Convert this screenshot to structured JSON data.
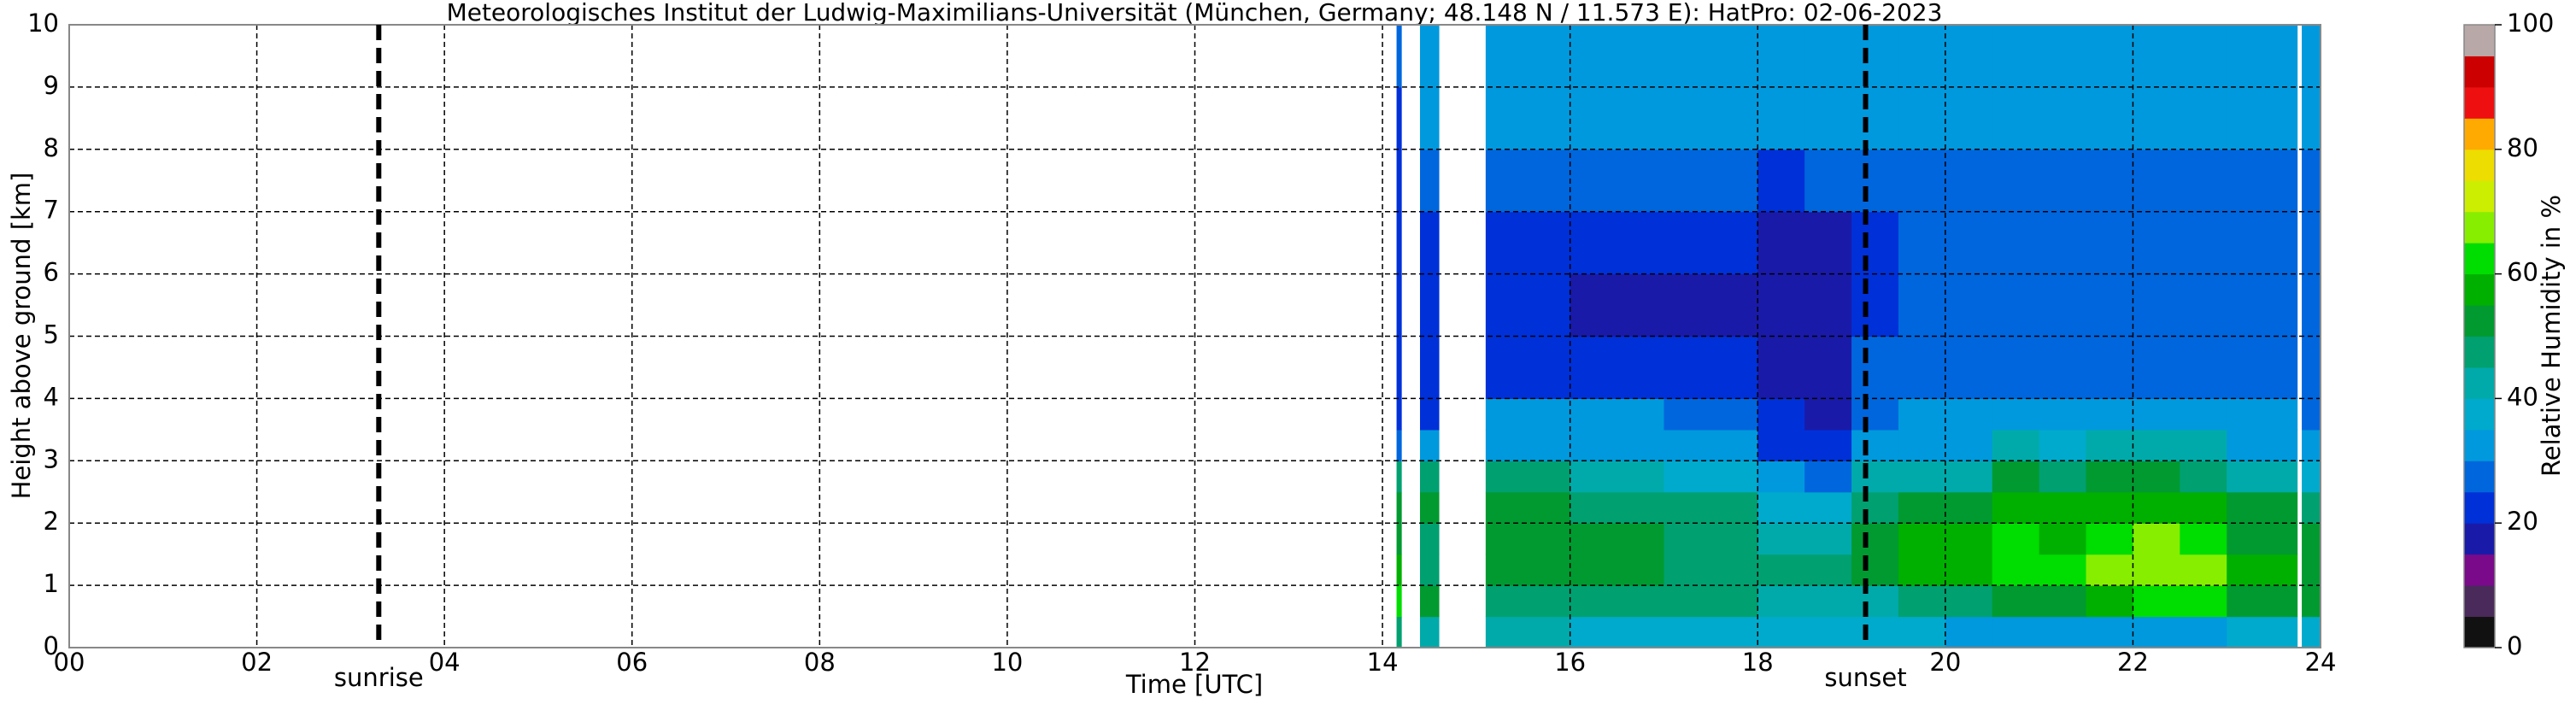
{
  "chart_data": {
    "type": "heatmap",
    "title": "Meteorologisches Institut der Ludwig-Maximilians-Universität (München, Germany; 48.148 N / 11.573 E):    HatPro: 02-06-2023",
    "x_label": "Time [UTC]",
    "y_label": "Height above ground [km]",
    "xlim": [
      0,
      24
    ],
    "ylim": [
      0,
      10
    ],
    "xticks": [
      {
        "value": 0,
        "label": "00"
      },
      {
        "value": 2,
        "label": "02"
      },
      {
        "value": 4,
        "label": "04"
      },
      {
        "value": 6,
        "label": "06"
      },
      {
        "value": 8,
        "label": "08"
      },
      10,
      12,
      14,
      16,
      18,
      20,
      22,
      24
    ],
    "yticks": [
      0,
      1,
      2,
      3,
      4,
      5,
      6,
      7,
      8,
      9,
      10
    ],
    "grid": true,
    "x_edges": [
      14.15,
      14.2,
      14.4,
      14.6,
      15.1,
      16,
      17,
      18,
      18.5,
      19,
      19.5,
      20,
      20.5,
      21,
      21.5,
      22,
      22.5,
      23,
      23.75,
      23.8,
      24
    ],
    "y_edges": [
      0,
      0.5,
      1,
      1.5,
      2,
      2.5,
      3,
      3.5,
      4,
      5,
      6,
      7,
      8,
      9,
      10
    ],
    "values": [
      [
        45,
        null,
        42,
        null,
        40,
        38,
        38,
        38,
        36,
        36,
        35,
        34,
        32,
        30,
        30,
        32,
        34,
        38,
        null,
        36
      ],
      [
        62,
        null,
        50,
        null,
        45,
        45,
        45,
        42,
        40,
        42,
        45,
        48,
        52,
        52,
        58,
        60,
        62,
        52,
        null,
        50
      ],
      [
        55,
        null,
        45,
        null,
        50,
        50,
        48,
        46,
        46,
        50,
        55,
        58,
        62,
        60,
        65,
        66,
        66,
        56,
        null,
        54
      ],
      [
        50,
        null,
        48,
        null,
        50,
        50,
        48,
        44,
        42,
        52,
        55,
        58,
        62,
        58,
        63,
        65,
        64,
        54,
        null,
        52
      ],
      [
        50,
        null,
        50,
        null,
        50,
        48,
        46,
        36,
        36,
        48,
        52,
        54,
        58,
        56,
        58,
        58,
        56,
        50,
        null,
        48
      ],
      [
        48,
        null,
        45,
        null,
        45,
        40,
        38,
        30,
        28,
        40,
        42,
        44,
        52,
        46,
        50,
        50,
        48,
        40,
        null,
        38
      ],
      [
        25,
        null,
        30,
        null,
        32,
        32,
        32,
        24,
        22,
        30,
        32,
        32,
        40,
        38,
        42,
        42,
        40,
        32,
        null,
        30
      ],
      [
        22,
        null,
        22,
        null,
        30,
        30,
        28,
        20,
        19,
        28,
        30,
        30,
        32,
        30,
        32,
        32,
        32,
        30,
        null,
        28
      ],
      [
        22,
        null,
        20,
        null,
        24,
        22,
        22,
        17,
        16,
        26,
        27,
        27,
        27,
        26,
        26,
        26,
        26,
        27,
        null,
        26
      ],
      [
        22,
        null,
        20,
        null,
        20,
        19,
        19,
        16,
        16,
        24,
        26,
        26,
        26,
        26,
        26,
        26,
        26,
        26,
        null,
        25
      ],
      [
        22,
        null,
        22,
        null,
        20,
        20,
        20,
        17,
        17,
        24,
        26,
        27,
        27,
        27,
        27,
        27,
        27,
        27,
        null,
        26
      ],
      [
        22,
        null,
        28,
        null,
        26,
        26,
        26,
        24,
        26,
        28,
        28,
        28,
        28,
        28,
        28,
        28,
        28,
        28,
        null,
        28
      ],
      [
        24,
        null,
        30,
        null,
        30,
        30,
        30,
        30,
        30,
        30,
        30,
        30,
        30,
        30,
        30,
        30,
        30,
        30,
        null,
        30
      ],
      [
        26,
        null,
        30,
        null,
        30,
        30,
        30,
        30,
        30,
        30,
        30,
        30,
        30,
        30,
        30,
        30,
        30,
        30,
        null,
        30
      ]
    ],
    "annotations": [
      {
        "x": 3.3,
        "text": "sunrise"
      },
      {
        "x": 19.15,
        "text": "sunset"
      }
    ],
    "colorbar": {
      "label": "Relative Humidity in %",
      "ylim": [
        0,
        100
      ],
      "yticks": [
        0,
        20,
        40,
        60,
        80,
        100
      ],
      "bins": [
        0,
        5,
        10,
        15,
        20,
        25,
        30,
        35,
        40,
        45,
        50,
        55,
        60,
        65,
        70,
        75,
        80,
        85,
        90,
        95,
        100
      ],
      "colors": [
        "#111111",
        "#4a2a5a",
        "#7a0a8a",
        "#1a1aa8",
        "#0030d8",
        "#0066dd",
        "#0099dd",
        "#00aacc",
        "#00aaaa",
        "#00a070",
        "#009a30",
        "#00b000",
        "#00dd00",
        "#88ee00",
        "#ccee00",
        "#eedd00",
        "#ffaa00",
        "#ee1010",
        "#cc0000",
        "#b8a8a8"
      ]
    }
  }
}
